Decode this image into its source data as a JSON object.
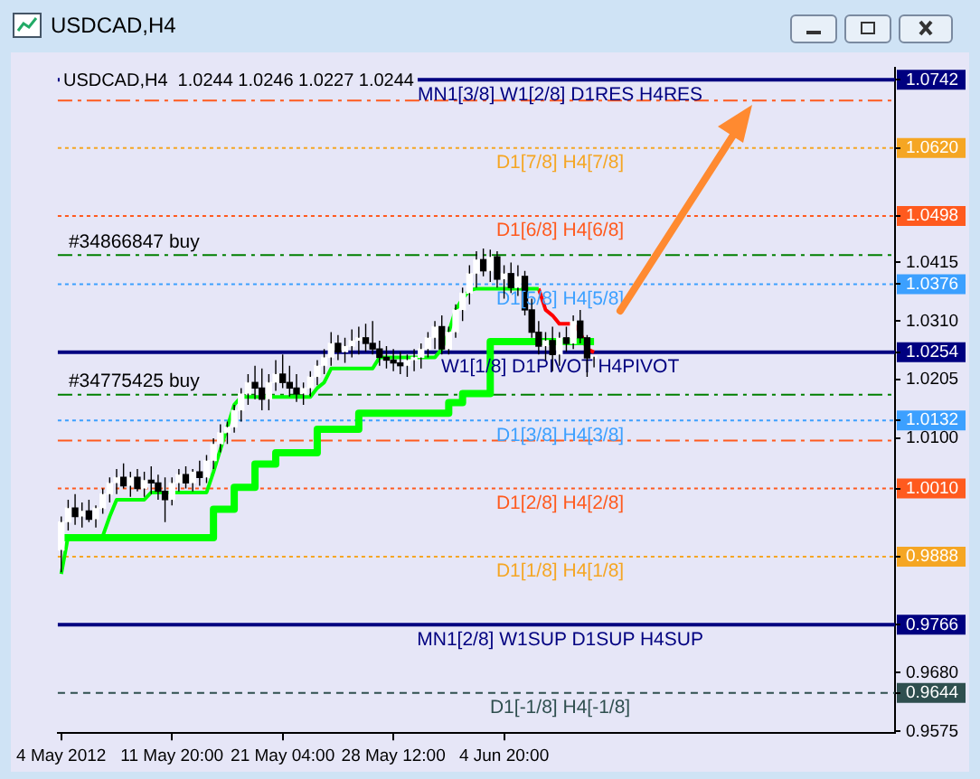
{
  "chart_data": {
    "type": "candlestick",
    "title": "USDCAD,H4",
    "subtitle": "USDCAD,H4  1.0244 1.0246 1.0227 1.0244",
    "categories": [
      "4 May 2012",
      null,
      null,
      null,
      null,
      null,
      null,
      null,
      null,
      null,
      null,
      null,
      null,
      null,
      null,
      null,
      "11 May 20:00",
      null,
      null,
      null,
      null,
      null,
      null,
      null,
      null,
      null,
      null,
      null,
      null,
      null,
      null,
      null,
      "21 May 04:00",
      null,
      null,
      null,
      null,
      null,
      null,
      null,
      null,
      null,
      null,
      null,
      null,
      null,
      null,
      null,
      "28 May 12:00",
      null,
      null,
      null,
      null,
      null,
      null,
      null,
      null,
      null,
      null,
      null,
      null,
      null,
      null,
      null,
      "4 Jun 20:00",
      null,
      null,
      null,
      null,
      null,
      null,
      null,
      null,
      null,
      null,
      null,
      null,
      null
    ],
    "ohlc": [
      [
        0.99,
        0.996,
        0.986,
        0.995
      ],
      [
        0.995,
        0.999,
        0.9935,
        0.9975
      ],
      [
        0.9975,
        1.0,
        0.9945,
        0.996
      ],
      [
        0.996,
        0.9985,
        0.994,
        0.997
      ],
      [
        0.997,
        0.999,
        0.995,
        0.9955
      ],
      [
        0.9955,
        0.998,
        0.994,
        0.9975
      ],
      [
        0.9975,
        1.001,
        0.9965,
        1.0
      ],
      [
        1.0,
        1.003,
        0.9985,
        1.002
      ],
      [
        1.002,
        1.0045,
        1.0,
        1.003
      ],
      [
        1.003,
        1.0055,
        1.001,
        1.0015
      ],
      [
        1.0015,
        1.004,
        0.9995,
        1.003
      ],
      [
        1.003,
        1.0045,
        1.0005,
        1.001
      ],
      [
        1.001,
        1.004,
        0.9995,
        1.0025
      ],
      [
        1.0025,
        1.005,
        1.0,
        1.002
      ],
      [
        1.002,
        1.0035,
        0.999,
        1.0005
      ],
      [
        1.0005,
        1.003,
        0.995,
        0.999
      ],
      [
        0.999,
        1.003,
        0.998,
        1.002
      ],
      [
        1.002,
        1.0045,
        1.0005,
        1.0035
      ],
      [
        1.0035,
        1.005,
        1.001,
        1.002
      ],
      [
        1.002,
        1.0045,
        1.0005,
        1.004
      ],
      [
        1.004,
        1.006,
        1.0015,
        1.003
      ],
      [
        1.003,
        1.007,
        1.002,
        1.006
      ],
      [
        1.006,
        1.01,
        1.0045,
        1.009
      ],
      [
        1.009,
        1.0125,
        1.0075,
        1.011
      ],
      [
        1.011,
        1.013,
        1.009,
        1.012
      ],
      [
        1.012,
        1.016,
        1.011,
        1.015
      ],
      [
        1.015,
        1.019,
        1.013,
        1.018
      ],
      [
        1.018,
        1.0215,
        1.016,
        1.02
      ],
      [
        1.02,
        1.023,
        1.017,
        1.019
      ],
      [
        1.019,
        1.0225,
        1.015,
        1.017
      ],
      [
        1.017,
        1.0215,
        1.015,
        1.02
      ],
      [
        1.02,
        1.024,
        1.0185,
        1.0215
      ],
      [
        1.0215,
        1.025,
        1.019,
        1.02
      ],
      [
        1.02,
        1.023,
        1.0175,
        1.019
      ],
      [
        1.019,
        1.0215,
        1.0165,
        1.018
      ],
      [
        1.018,
        1.02,
        1.016,
        1.019
      ],
      [
        1.019,
        1.022,
        1.0175,
        1.021
      ],
      [
        1.021,
        1.024,
        1.0195,
        1.023
      ],
      [
        1.023,
        1.026,
        1.0215,
        1.0245
      ],
      [
        1.0245,
        1.029,
        1.023,
        1.027
      ],
      [
        1.027,
        1.0285,
        1.024,
        1.0255
      ],
      [
        1.0255,
        1.028,
        1.0235,
        1.0265
      ],
      [
        1.0265,
        1.0295,
        1.0245,
        1.0275
      ],
      [
        1.0275,
        1.03,
        1.025,
        1.028
      ],
      [
        1.028,
        1.0305,
        1.0255,
        1.027
      ],
      [
        1.027,
        1.031,
        1.025,
        1.026
      ],
      [
        1.026,
        1.0275,
        1.023,
        1.0245
      ],
      [
        1.0245,
        1.0265,
        1.0225,
        1.024
      ],
      [
        1.024,
        1.026,
        1.022,
        1.0235
      ],
      [
        1.0235,
        1.0255,
        1.0215,
        1.023
      ],
      [
        1.023,
        1.025,
        1.021,
        1.024
      ],
      [
        1.024,
        1.026,
        1.022,
        1.0245
      ],
      [
        1.0245,
        1.027,
        1.0225,
        1.026
      ],
      [
        1.026,
        1.029,
        1.0245,
        1.028
      ],
      [
        1.028,
        1.031,
        1.026,
        1.03
      ],
      [
        1.03,
        1.032,
        1.025,
        1.026
      ],
      [
        1.026,
        1.03,
        1.025,
        1.029
      ],
      [
        1.029,
        1.034,
        1.028,
        1.033
      ],
      [
        1.033,
        1.037,
        1.031,
        1.036
      ],
      [
        1.036,
        1.041,
        1.034,
        1.0395
      ],
      [
        1.0395,
        1.0435,
        1.037,
        1.042
      ],
      [
        1.042,
        1.044,
        1.039,
        1.04
      ],
      [
        1.04,
        1.0438,
        1.038,
        1.0425
      ],
      [
        1.0425,
        1.0435,
        1.037,
        1.0385
      ],
      [
        1.0385,
        1.041,
        1.035,
        1.0395
      ],
      [
        1.0395,
        1.0415,
        1.036,
        1.037
      ],
      [
        1.037,
        1.041,
        1.0355,
        1.039
      ],
      [
        1.039,
        1.04,
        1.032,
        1.033
      ],
      [
        1.033,
        1.035,
        1.028,
        1.029
      ],
      [
        1.029,
        1.031,
        1.025,
        1.0265
      ],
      [
        1.0265,
        1.029,
        1.024,
        1.0275
      ],
      [
        1.0275,
        1.03,
        1.022,
        1.025
      ],
      [
        1.025,
        1.029,
        1.023,
        1.028
      ],
      [
        1.028,
        1.03,
        1.0255,
        1.027
      ],
      [
        1.027,
        1.032,
        1.026,
        1.031
      ],
      [
        1.031,
        1.033,
        1.027,
        1.028
      ],
      [
        1.028,
        1.0285,
        1.021,
        1.0244
      ],
      [
        1.0244,
        1.0246,
        1.0227,
        1.0244
      ]
    ],
    "series": [
      {
        "type": "step",
        "color": "#00ff00",
        "values": [
          0.9922,
          0.9922,
          0.9922,
          0.9922,
          0.9922,
          0.9922,
          0.9922,
          0.9922,
          0.9922,
          0.9922,
          0.9922,
          0.9922,
          0.9922,
          0.9922,
          0.9922,
          0.9922,
          0.9922,
          0.9922,
          0.9922,
          0.9922,
          0.9922,
          0.9922,
          0.9973,
          0.9973,
          0.9973,
          1.0012,
          1.0012,
          1.0012,
          1.0054,
          1.0054,
          1.0054,
          1.0074,
          1.0074,
          1.0074,
          1.0074,
          1.0074,
          1.0074,
          1.0116,
          1.0116,
          1.0116,
          1.0116,
          1.0116,
          1.0116,
          1.0145,
          1.0145,
          1.0145,
          1.0145,
          1.0145,
          1.0145,
          1.0145,
          1.0145,
          1.0145,
          1.0145,
          1.0145,
          1.0145,
          1.0145,
          1.0164,
          1.0164,
          1.018,
          1.018,
          1.018,
          1.018,
          1.0273,
          1.0273,
          1.0273,
          1.0273,
          1.0273,
          1.0273,
          1.0273,
          1.0273,
          1.0273,
          1.0273,
          1.0273,
          1.0273,
          1.0273,
          1.0273,
          1.0273,
          1.0273
        ]
      },
      {
        "type": "line",
        "color": "#00ff00",
        "values": [
          0.9857,
          0.9925,
          0.9925,
          0.9925,
          0.9925,
          0.9925,
          0.9925,
          0.996,
          0.999,
          0.999,
          0.999,
          0.999,
          0.999,
          1.0003,
          1.0003,
          1.0003,
          1.0003,
          1.0003,
          1.0003,
          1.0003,
          1.0003,
          1.0003,
          1.004,
          1.008,
          1.012,
          1.016,
          1.0174,
          1.0174,
          1.0174,
          1.0174,
          1.0174,
          1.0174,
          1.0174,
          1.0174,
          1.0174,
          1.0174,
          1.0174,
          1.019,
          1.02,
          1.0225,
          1.0225,
          1.0225,
          1.0225,
          1.0225,
          1.0225,
          1.0225,
          1.0245,
          1.0245,
          1.0245,
          1.0245,
          1.0245,
          1.0245,
          1.0245,
          1.0245,
          1.0245,
          1.026,
          1.029,
          1.033,
          1.035,
          1.0365,
          1.0368,
          1.0368,
          1.0368,
          1.0368,
          1.0368,
          1.0368,
          1.0368,
          1.0368,
          1.0368,
          1.0368,
          null,
          null,
          null,
          null,
          null,
          null,
          null,
          null
        ]
      },
      {
        "type": "line",
        "color": "#ff0000",
        "values": [
          null,
          null,
          null,
          null,
          null,
          null,
          null,
          null,
          null,
          null,
          null,
          null,
          null,
          null,
          null,
          null,
          null,
          null,
          null,
          null,
          null,
          null,
          null,
          null,
          null,
          null,
          null,
          null,
          null,
          null,
          null,
          null,
          null,
          null,
          null,
          null,
          null,
          null,
          null,
          null,
          null,
          null,
          null,
          null,
          null,
          null,
          null,
          null,
          null,
          null,
          null,
          null,
          null,
          null,
          null,
          null,
          null,
          null,
          null,
          null,
          null,
          null,
          null,
          null,
          null,
          null,
          null,
          null,
          null,
          1.0368,
          1.033,
          1.032,
          1.0305,
          1.0305,
          1.0305,
          1.029,
          1.026,
          1.0254
        ]
      }
    ],
    "ylim": [
      0.9572,
      1.0763
    ],
    "yticks": [
      {
        "value": 0.9575,
        "label": "0.9575"
      },
      {
        "value": 0.9644,
        "label": "0.9644"
      },
      {
        "value": 0.968,
        "label": "0.9680"
      },
      {
        "value": 0.9766,
        "label": "0.9766"
      },
      {
        "value": 0.9888,
        "label": "0.9888"
      },
      {
        "value": 1.001,
        "label": "1.0010"
      },
      {
        "value": 1.01,
        "label": "1.0100"
      },
      {
        "value": 1.0132,
        "label": "1.0132"
      },
      {
        "value": 1.0205,
        "label": "1.0205"
      },
      {
        "value": 1.0254,
        "label": "1.0254"
      },
      {
        "value": 1.031,
        "label": "1.0310"
      },
      {
        "value": 1.0376,
        "label": "1.0376"
      },
      {
        "value": 1.0415,
        "label": "1.0415"
      },
      {
        "value": 1.0498,
        "label": "1.0498"
      },
      {
        "value": 1.062,
        "label": "1.0620"
      },
      {
        "value": 1.0742,
        "label": "1.0742"
      }
    ],
    "ref_lines": [
      {
        "axis": "y",
        "value": 1.0742,
        "label": "MN1[3/8] W1[2/8] D1RES H4RES",
        "color": "#000080",
        "line_style": "solid"
      },
      {
        "axis": "y",
        "value": 1.0705,
        "color": "#ff5a1e",
        "line_style": "dashdot"
      },
      {
        "axis": "y",
        "value": 1.062,
        "label": "D1[7/8] H4[7/8]",
        "color": "#f5a623",
        "line_style": "dotted"
      },
      {
        "axis": "y",
        "value": 1.0498,
        "label": "D1[6/8] H4[6/8]",
        "color": "#ff5a1e",
        "line_style": "dotted"
      },
      {
        "axis": "y",
        "value": 1.0428,
        "label": "#34866847 buy",
        "color": "#008000",
        "line_style": "dashdot"
      },
      {
        "axis": "y",
        "value": 1.0376,
        "label": "D1[5/8] H4[5/8]",
        "color": "#3ca0ff",
        "line_style": "dotted"
      },
      {
        "axis": "y",
        "value": 1.0254,
        "label": "W1[1/8] D1PIVOT H4PIVOT",
        "color": "#000080",
        "line_style": "solid"
      },
      {
        "axis": "y",
        "value": 1.0178,
        "label": "#34775425 buy",
        "color": "#008000",
        "line_style": "dashdot"
      },
      {
        "axis": "y",
        "value": 1.0132,
        "label": "D1[3/8] H4[3/8]",
        "color": "#3ca0ff",
        "line_style": "dotted"
      },
      {
        "axis": "y",
        "value": 1.0096,
        "color": "#ff5a1e",
        "line_style": "dashdot"
      },
      {
        "axis": "y",
        "value": 1.001,
        "label": "D1[2/8] H4[2/8]",
        "color": "#ff5a1e",
        "line_style": "dotted"
      },
      {
        "axis": "y",
        "value": 0.9888,
        "label": "D1[1/8] H4[1/8]",
        "color": "#f5a623",
        "line_style": "dotted"
      },
      {
        "axis": "y",
        "value": 0.9766,
        "label": "MN1[2/8] W1SUP D1SUP H4SUP",
        "color": "#000080",
        "line_style": "solid"
      },
      {
        "axis": "y",
        "value": 0.9644,
        "label": "D1[-1/8] H4[-1/8]",
        "color": "#2f4f4f",
        "line_style": "dashed"
      }
    ],
    "grid": false,
    "legend": false,
    "marker": "none"
  }
}
